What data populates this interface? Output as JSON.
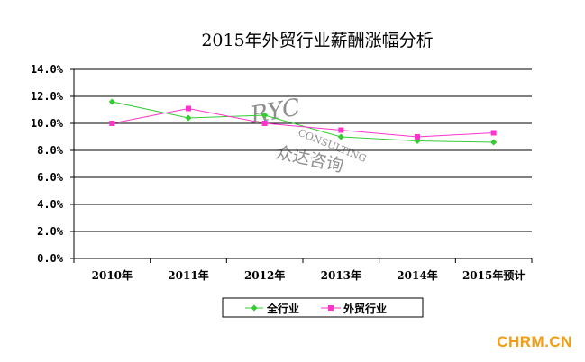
{
  "chart_data": {
    "type": "line",
    "title": "2015年外贸行业薪酬涨幅分析",
    "categories": [
      "2010年",
      "2011年",
      "2012年",
      "2013年",
      "2014年",
      "2015年预计"
    ],
    "ylim": [
      0,
      14
    ],
    "yticks": [
      "0.0%",
      "2.0%",
      "4.0%",
      "6.0%",
      "8.0%",
      "10.0%",
      "12.0%",
      "14.0%"
    ],
    "ytick_values": [
      0,
      2,
      4,
      6,
      8,
      10,
      12,
      14
    ],
    "grid": true,
    "legend_position": "bottom",
    "series": [
      {
        "name": "全行业",
        "values": [
          11.6,
          10.4,
          10.6,
          9.0,
          8.7,
          8.6
        ],
        "color": "#33cc33",
        "marker": "diamond"
      },
      {
        "name": "外贸行业",
        "values": [
          10.0,
          11.1,
          10.0,
          9.5,
          9.0,
          9.3
        ],
        "color": "#ff33cc",
        "marker": "square"
      }
    ]
  },
  "watermark": {
    "logo": "RYC",
    "consulting": "CONSULTING",
    "chinese": "众达咨询"
  },
  "site": {
    "text": "CHRM.CN",
    "color": "#f39c12"
  }
}
